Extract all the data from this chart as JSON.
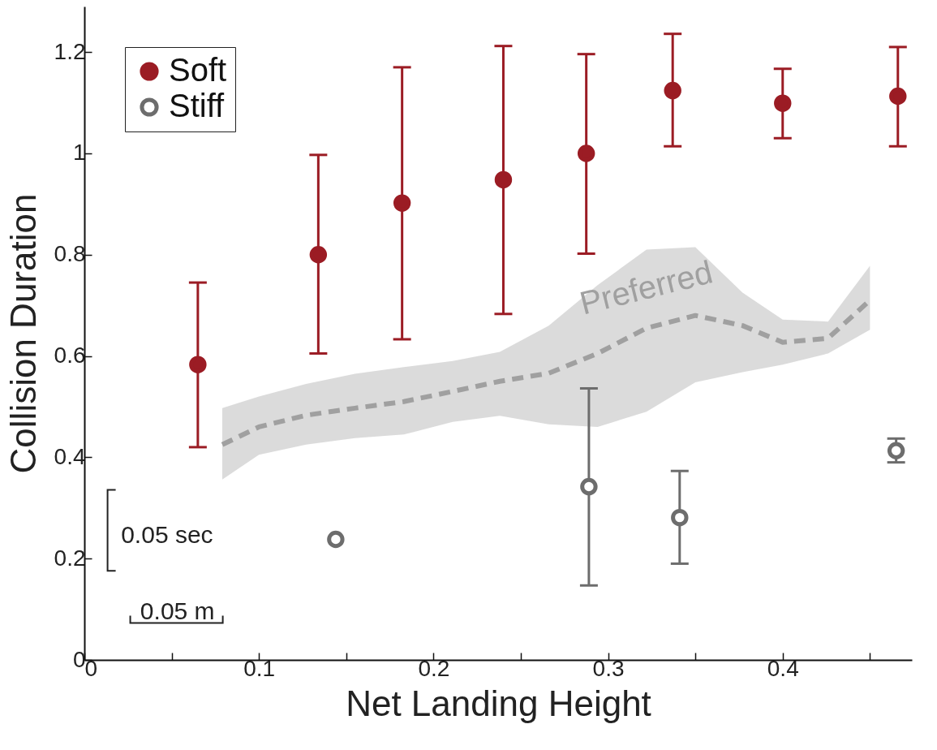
{
  "chart_data": {
    "type": "scatter",
    "xlabel": "Net Landing Height",
    "ylabel": "Collision Duration",
    "xlim": [
      0,
      0.474
    ],
    "ylim": [
      0,
      1.29
    ],
    "xticks": [
      0,
      {
        "value": 0.05,
        "label": null
      },
      0.1,
      {
        "value": 0.15,
        "label": null
      },
      0.2,
      {
        "value": 0.25,
        "label": null
      },
      0.3,
      {
        "value": 0.35,
        "label": null
      },
      0.4,
      {
        "value": 0.45,
        "label": null
      }
    ],
    "yticks": [
      0,
      0.2,
      0.4,
      0.6,
      0.8,
      1,
      1.2
    ],
    "legend": "top left",
    "grid": false,
    "annotations": [
      "0.05 sec",
      "0.05 m"
    ],
    "series": [
      {
        "name": "Soft",
        "type": "scatter",
        "color": "#9b1c24",
        "x": [
          0.065,
          0.134,
          0.182,
          0.24,
          0.2875,
          0.337,
          0.4,
          0.466
        ],
        "values": [
          0.583,
          0.8,
          0.902,
          0.948,
          1.0,
          1.124,
          1.099,
          1.113
        ],
        "errors": [
          [
            0.42,
            0.745
          ],
          [
            0.605,
            0.997
          ],
          [
            0.633,
            1.17
          ],
          [
            0.683,
            1.212
          ],
          [
            0.802,
            1.196
          ],
          [
            1.014,
            1.236
          ],
          [
            1.03,
            1.167
          ],
          [
            1.014,
            1.21
          ]
        ]
      },
      {
        "name": "Stiff",
        "type": "scatter",
        "color": "#6d6d6d",
        "x": [
          0.144,
          0.289,
          0.341,
          0.465
        ],
        "values": [
          0.238,
          0.342,
          0.281,
          0.413
        ],
        "errors": [
          null,
          [
            0.147,
            0.536
          ],
          [
            0.19,
            0.373
          ],
          [
            0.39,
            0.437
          ]
        ]
      },
      {
        "name": "Preferred",
        "type": "line",
        "color": "#a0a0a0",
        "line_style": "dashed",
        "x": [
          0.079,
          0.1,
          0.127,
          0.155,
          0.183,
          0.211,
          0.238,
          0.266,
          0.294,
          0.322,
          0.35,
          0.377,
          0.4,
          0.426,
          0.45
        ],
        "values": [
          0.425,
          0.46,
          0.483,
          0.497,
          0.51,
          0.53,
          0.55,
          0.566,
          0.605,
          0.655,
          0.68,
          0.66,
          0.627,
          0.635,
          0.71
        ],
        "upper": [
          0.497,
          0.52,
          0.545,
          0.565,
          0.578,
          0.59,
          0.608,
          0.66,
          0.74,
          0.81,
          0.815,
          0.725,
          0.672,
          0.668,
          0.778
        ],
        "lower": [
          0.356,
          0.405,
          0.425,
          0.438,
          0.445,
          0.47,
          0.482,
          0.465,
          0.46,
          0.49,
          0.548,
          0.568,
          0.583,
          0.605,
          0.652
        ]
      }
    ]
  }
}
